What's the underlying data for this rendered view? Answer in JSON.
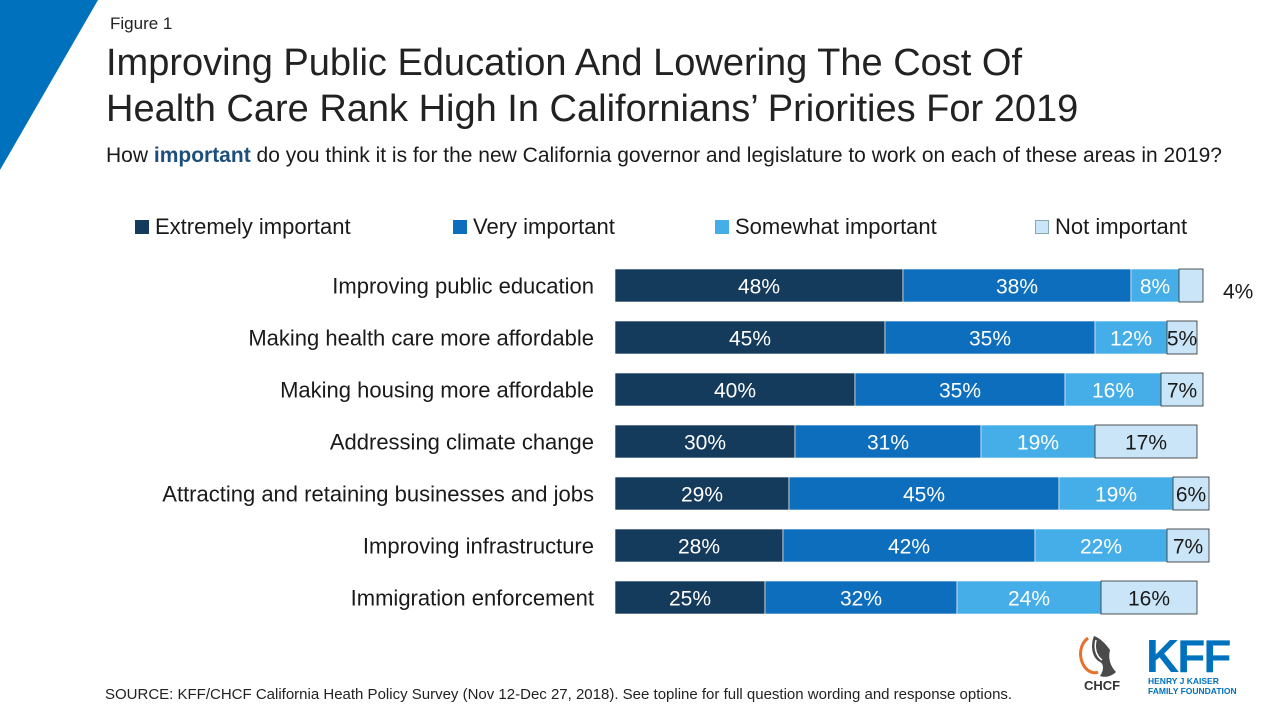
{
  "figure_label": "Figure 1",
  "title_line1": "Improving Public Education And Lowering The Cost Of",
  "title_line2": "Health Care Rank High In Californians’ Priorities For 2019",
  "subtitle_pre": "How ",
  "subtitle_emph": "important",
  "subtitle_post": " do you think it is for the new California governor and legislature to work on each of these areas in 2019?",
  "source": "SOURCE: KFF/CHCF California Heath Policy Survey (Nov 12-Dec 27, 2018). See topline for full question wording and response options.",
  "logos": {
    "chcf_text": "CHCF",
    "kff_text": "KFF",
    "kff_sub1": "HENRY J KAISER",
    "kff_sub2": "FAMILY FOUNDATION"
  },
  "colors": {
    "extremely": "#143a5c",
    "very": "#0e6ebe",
    "somewhat": "#45aee8",
    "not": "#c9e5f7",
    "accent": "#0071bc"
  },
  "chart_data": {
    "type": "bar",
    "orientation": "horizontal",
    "stacked": true,
    "legend_position": "top",
    "categories": [
      "Improving public education",
      "Making health care more affordable",
      "Making housing more affordable",
      "Addressing climate change",
      "Attracting and retaining businesses and jobs",
      "Improving infrastructure",
      "Immigration enforcement"
    ],
    "series": [
      {
        "name": "Extremely important",
        "values": [
          48,
          45,
          40,
          30,
          29,
          28,
          25
        ]
      },
      {
        "name": "Very important",
        "values": [
          38,
          35,
          35,
          31,
          45,
          42,
          32
        ]
      },
      {
        "name": "Somewhat important",
        "values": [
          8,
          12,
          16,
          19,
          19,
          22,
          24
        ]
      },
      {
        "name": "Not important",
        "values": [
          4,
          5,
          7,
          17,
          6,
          7,
          16
        ]
      }
    ],
    "value_suffix": "%",
    "xlim": [
      0,
      100
    ]
  }
}
